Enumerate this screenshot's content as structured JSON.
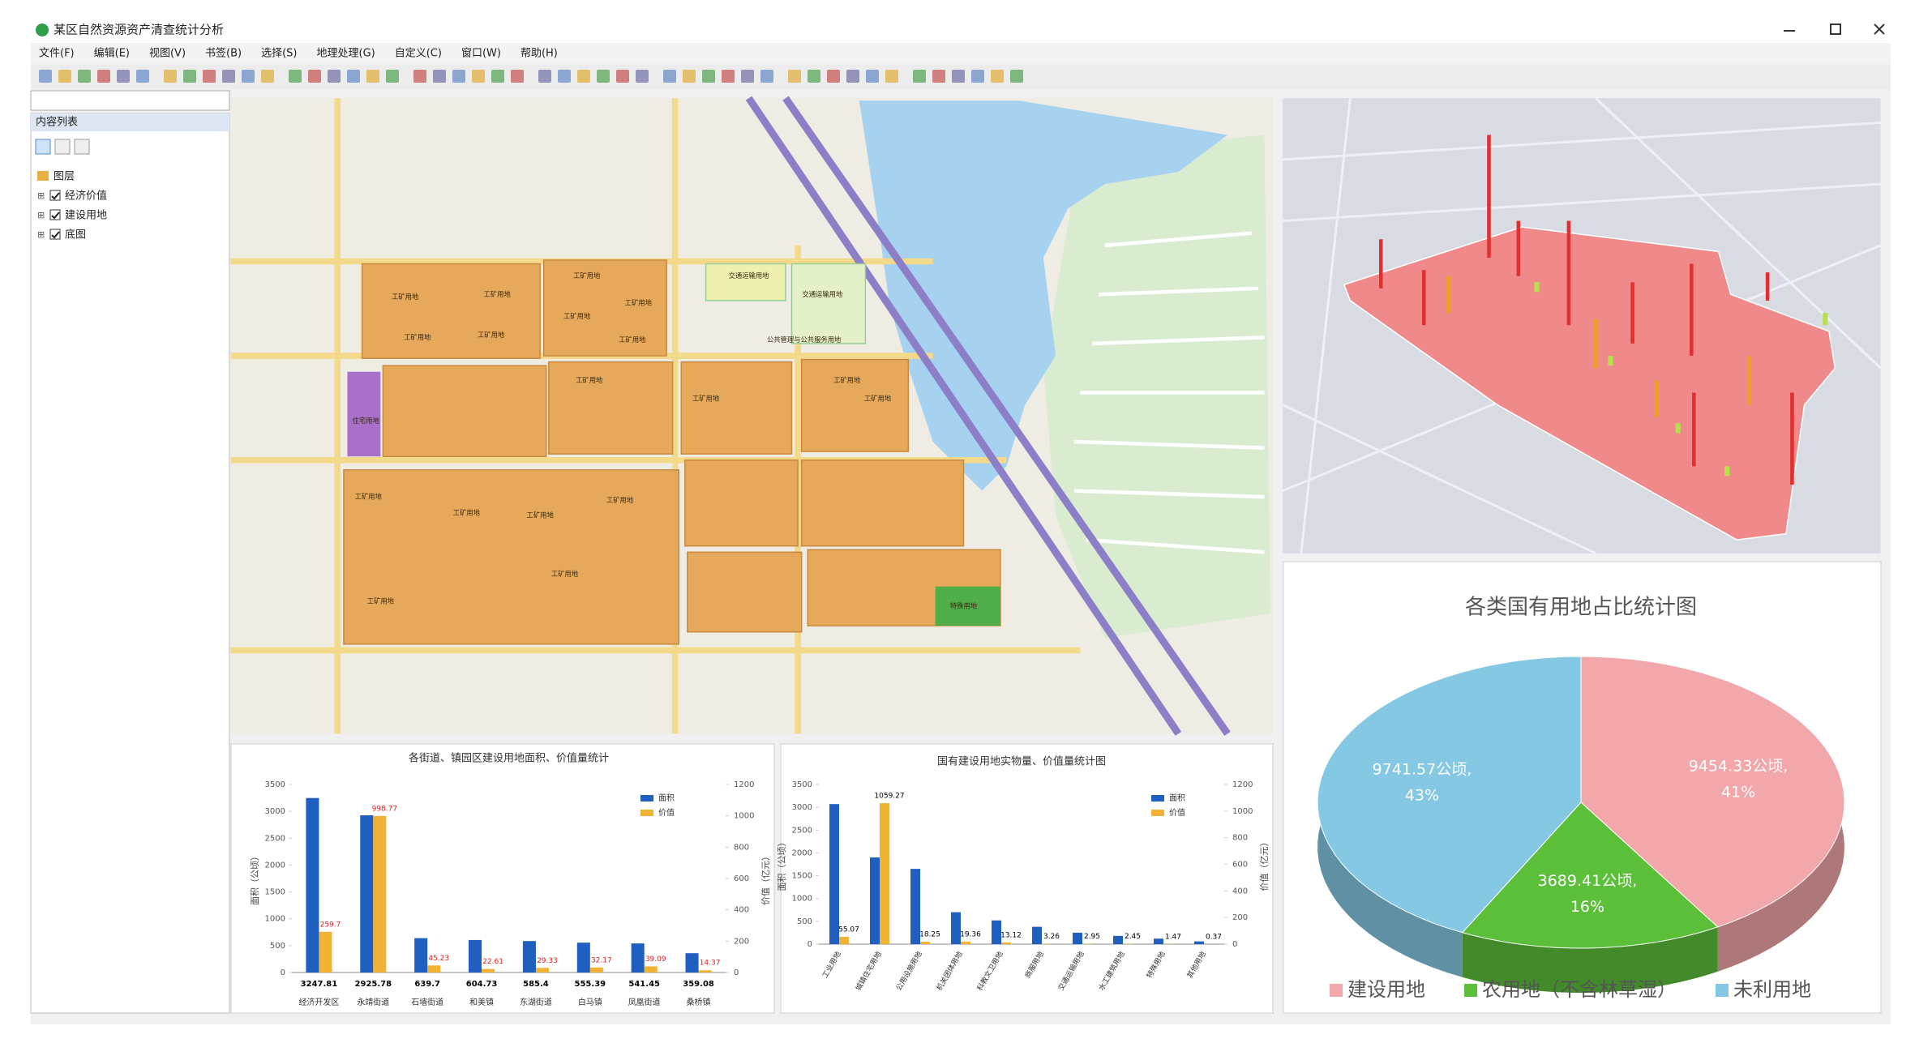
{
  "window": {
    "title": "某区自然资源资产清查统计分析",
    "menu": [
      "文件(F)",
      "编辑(E)",
      "视图(V)",
      "书签(B)",
      "选择(S)",
      "地理处理(G)",
      "自定义(C)",
      "窗口(W)",
      "帮助(H)"
    ],
    "toc_title": "内容列表",
    "layers": [
      "图层",
      "经济价值",
      "建设用地",
      "底图"
    ]
  },
  "map": {
    "labels": [
      "工矿用地",
      "工矿用地",
      "工矿用地",
      "工矿用地",
      "工矿用地",
      "工矿用地",
      "工矿用地",
      "工矿用地",
      "工矿用地",
      "工矿用地",
      "工矿用地",
      "工矿用地",
      "工矿用地",
      "工矿用地",
      "工矿用地",
      "工矿用地",
      "工矿用地",
      "工矿用地",
      "交通运输用地",
      "交通运输用地",
      "公共管理与公共服务用地",
      "住宅用地",
      "特殊用地"
    ]
  },
  "chart_data": [
    {
      "type": "bar",
      "title": "各街道、镇园区建设用地面积、价值量统计",
      "categories": [
        "经济开发区",
        "永靖街道",
        "石墙街道",
        "和美镇",
        "东湖街道",
        "白马镇",
        "凤凰街道",
        "桑桥镇"
      ],
      "series": [
        {
          "name": "面积",
          "color": "#1f5fbf",
          "label_color": "#000000",
          "label_position": "below",
          "values": [
            3247.81,
            2925.78,
            639.7,
            604.73,
            585.4,
            555.39,
            541.45,
            359.08
          ]
        },
        {
          "name": "价值",
          "color": "#f2b233",
          "label_color": "#e02020",
          "label_position": "above",
          "axis": "y2",
          "values": [
            259.7,
            998.77,
            45.23,
            22.61,
            29.33,
            32.17,
            39.09,
            14.37
          ]
        }
      ],
      "ylim": [
        0,
        3500
      ],
      "yticks": [
        0,
        500,
        1000,
        1500,
        2000,
        2500,
        3000,
        3500
      ],
      "y2lim": [
        0,
        1200
      ],
      "y2ticks": [
        0,
        200,
        400,
        600,
        800,
        1000,
        1200
      ],
      "ylabel": "面积（公顷）",
      "y2label": "价值（亿元）",
      "grid": false,
      "legend": "top-right"
    },
    {
      "type": "bar",
      "title": "国有建设用地实物量、价值量统计图",
      "categories": [
        "工业用地",
        "城镇住宅用地",
        "公用设施用地",
        "机关团体用地",
        "科教文卫用地",
        "商服用地",
        "交通运输用地",
        "水工建筑用地",
        "特殊用地",
        "其他用地"
      ],
      "series": [
        {
          "name": "面积",
          "color": "#1f5fbf",
          "values": [
            3070,
            1900,
            1650,
            700,
            520,
            380,
            250,
            180,
            120,
            60
          ]
        },
        {
          "name": "价值",
          "color": "#f2b233",
          "label_color": "#000000",
          "label_position": "above",
          "axis": "y2",
          "values": [
            55.07,
            1059.27,
            18.25,
            19.36,
            13.12,
            3.26,
            2.95,
            2.45,
            1.47,
            0.37
          ]
        }
      ],
      "ylim": [
        0,
        3500
      ],
      "yticks": [
        0,
        500,
        1000,
        1500,
        2000,
        2500,
        3000,
        3500
      ],
      "y2lim": [
        0,
        1200
      ],
      "y2ticks": [
        0,
        200,
        400,
        600,
        800,
        1000,
        1200
      ],
      "ylabel": "面积（公顷）",
      "y2label": "价值（亿元）",
      "grid": false,
      "legend": "top-right"
    },
    {
      "type": "pie",
      "title": "各类国有用地占比统计图",
      "categories": [
        "建设用地",
        "农用地（不含林草湿）",
        "未利用地"
      ],
      "values": [
        9454.33,
        3689.41,
        9741.57
      ],
      "value_labels": [
        "9454.33公顷,",
        "3689.41公顷,",
        "9741.57公顷,"
      ],
      "percent_labels": [
        "41%",
        "16%",
        "43%"
      ],
      "colors": [
        "#f2a7aa",
        "#5cbf3a",
        "#84c8e4"
      ],
      "legend": "bottom"
    }
  ]
}
